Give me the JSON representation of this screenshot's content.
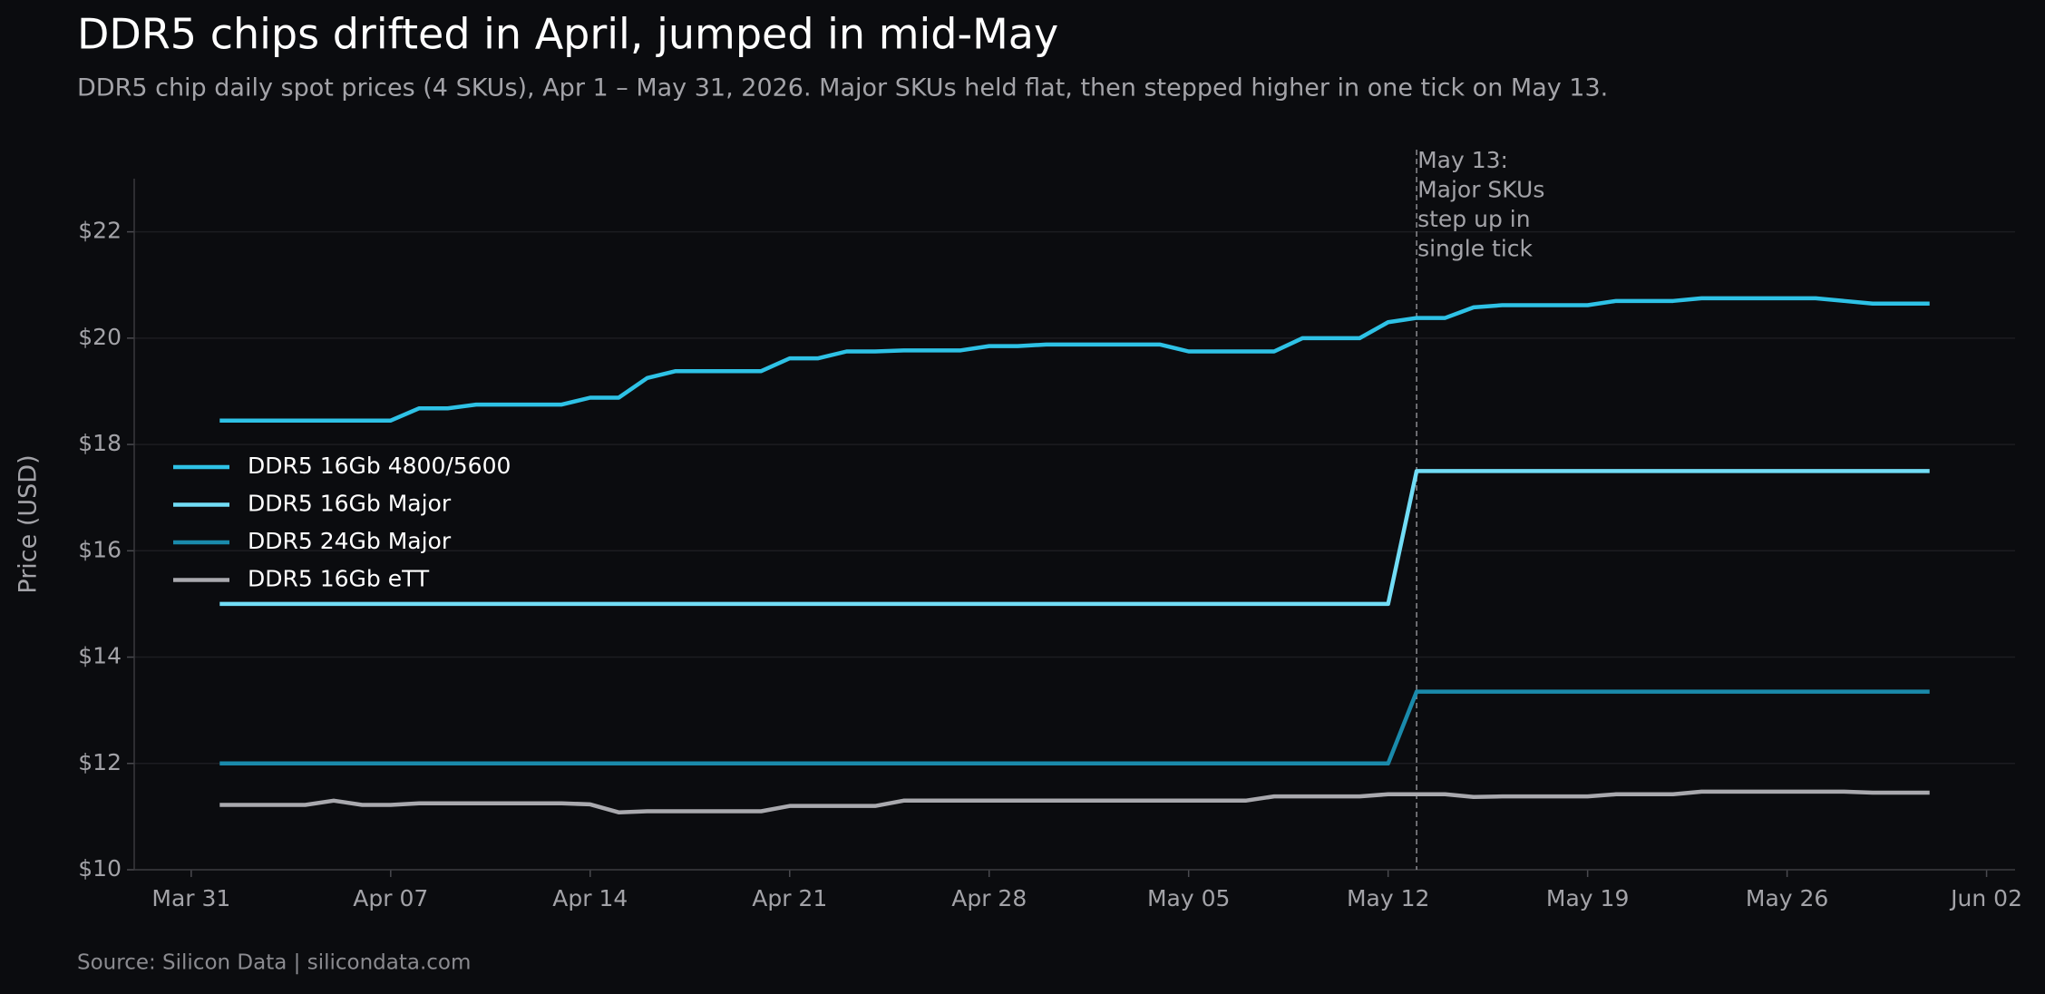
{
  "chart_data": {
    "type": "line",
    "title": "DDR5 chips drifted in April, jumped in mid-May",
    "subtitle": "DDR5 chip daily spot prices (4 SKUs), Apr 1 – May 31, 2026. Major SKUs held flat, then stepped higher in one tick on May 13.",
    "y_label": "Price (USD)",
    "source": "Source: Silicon Data  |  silicondata.com",
    "x": [
      "Apr 01",
      "Apr 02",
      "Apr 03",
      "Apr 04",
      "Apr 05",
      "Apr 06",
      "Apr 07",
      "Apr 08",
      "Apr 09",
      "Apr 10",
      "Apr 11",
      "Apr 12",
      "Apr 13",
      "Apr 14",
      "Apr 15",
      "Apr 16",
      "Apr 17",
      "Apr 18",
      "Apr 19",
      "Apr 20",
      "Apr 21",
      "Apr 22",
      "Apr 23",
      "Apr 24",
      "Apr 25",
      "Apr 26",
      "Apr 27",
      "Apr 28",
      "Apr 29",
      "Apr 30",
      "May 01",
      "May 02",
      "May 03",
      "May 04",
      "May 05",
      "May 06",
      "May 07",
      "May 08",
      "May 09",
      "May 10",
      "May 11",
      "May 12",
      "May 13",
      "May 14",
      "May 15",
      "May 16",
      "May 17",
      "May 18",
      "May 19",
      "May 20",
      "May 21",
      "May 22",
      "May 23",
      "May 24",
      "May 25",
      "May 26",
      "May 27",
      "May 28",
      "May 29",
      "May 30",
      "May 31"
    ],
    "series": [
      {
        "name": "DDR5 16Gb 4800/5600",
        "color": "#2ec2e6",
        "values": [
          18.45,
          18.45,
          18.45,
          18.45,
          18.45,
          18.45,
          18.45,
          18.68,
          18.68,
          18.75,
          18.75,
          18.75,
          18.75,
          18.88,
          18.88,
          19.25,
          19.38,
          19.38,
          19.38,
          19.38,
          19.62,
          19.62,
          19.75,
          19.75,
          19.77,
          19.77,
          19.77,
          19.85,
          19.85,
          19.88,
          19.88,
          19.88,
          19.88,
          19.88,
          19.75,
          19.75,
          19.75,
          19.75,
          20.0,
          20.0,
          20.0,
          20.3,
          20.38,
          20.38,
          20.58,
          20.62,
          20.62,
          20.62,
          20.62,
          20.7,
          20.7,
          20.7,
          20.75,
          20.75,
          20.75,
          20.75,
          20.75,
          20.7,
          20.65,
          20.65,
          20.65
        ]
      },
      {
        "name": "DDR5 16Gb Major",
        "color": "#72ddf6",
        "values": [
          15,
          15,
          15,
          15,
          15,
          15,
          15,
          15,
          15,
          15,
          15,
          15,
          15,
          15,
          15,
          15,
          15,
          15,
          15,
          15,
          15,
          15,
          15,
          15,
          15,
          15,
          15,
          15,
          15,
          15,
          15,
          15,
          15,
          15,
          15,
          15,
          15,
          15,
          15,
          15,
          15,
          15,
          17.5,
          17.5,
          17.5,
          17.5,
          17.5,
          17.5,
          17.5,
          17.5,
          17.5,
          17.5,
          17.5,
          17.5,
          17.5,
          17.5,
          17.5,
          17.5,
          17.5,
          17.5,
          17.5
        ]
      },
      {
        "name": "DDR5 24Gb Major",
        "color": "#1a8aab",
        "values": [
          12,
          12,
          12,
          12,
          12,
          12,
          12,
          12,
          12,
          12,
          12,
          12,
          12,
          12,
          12,
          12,
          12,
          12,
          12,
          12,
          12,
          12,
          12,
          12,
          12,
          12,
          12,
          12,
          12,
          12,
          12,
          12,
          12,
          12,
          12,
          12,
          12,
          12,
          12,
          12,
          12,
          12,
          13.35,
          13.35,
          13.35,
          13.35,
          13.35,
          13.35,
          13.35,
          13.35,
          13.35,
          13.35,
          13.35,
          13.35,
          13.35,
          13.35,
          13.35,
          13.35,
          13.35,
          13.35,
          13.35
        ]
      },
      {
        "name": "DDR5 16Gb eTT",
        "color": "#a9a9ae",
        "values": [
          11.22,
          11.22,
          11.22,
          11.22,
          11.3,
          11.22,
          11.22,
          11.25,
          11.25,
          11.25,
          11.25,
          11.25,
          11.25,
          11.23,
          11.08,
          11.1,
          11.1,
          11.1,
          11.1,
          11.1,
          11.2,
          11.2,
          11.2,
          11.2,
          11.3,
          11.3,
          11.3,
          11.3,
          11.3,
          11.3,
          11.3,
          11.3,
          11.3,
          11.3,
          11.3,
          11.3,
          11.3,
          11.38,
          11.38,
          11.38,
          11.38,
          11.42,
          11.42,
          11.42,
          11.37,
          11.38,
          11.38,
          11.38,
          11.38,
          11.42,
          11.42,
          11.42,
          11.47,
          11.47,
          11.47,
          11.47,
          11.47,
          11.47,
          11.45,
          11.45,
          11.45
        ]
      }
    ],
    "xlim": [
      "Mar 29",
      "Jun 03"
    ],
    "xticks": [
      "Mar 31",
      "Apr 07",
      "Apr 14",
      "Apr 21",
      "Apr 28",
      "May 05",
      "May 12",
      "May 19",
      "May 26",
      "Jun 02"
    ],
    "ylim": [
      10,
      23
    ],
    "yticks": [
      {
        "value": 10,
        "label": "$10"
      },
      {
        "value": 12,
        "label": "$12"
      },
      {
        "value": 14,
        "label": "$14"
      },
      {
        "value": 16,
        "label": "$16"
      },
      {
        "value": 18,
        "label": "$18"
      },
      {
        "value": 20,
        "label": "$20"
      },
      {
        "value": 22,
        "label": "$22"
      }
    ],
    "grid": true,
    "legend": "center left",
    "annotation": {
      "x": "May 13",
      "lines": [
        "May 13:",
        "Major SKUs",
        "step up in",
        "single tick"
      ]
    }
  }
}
